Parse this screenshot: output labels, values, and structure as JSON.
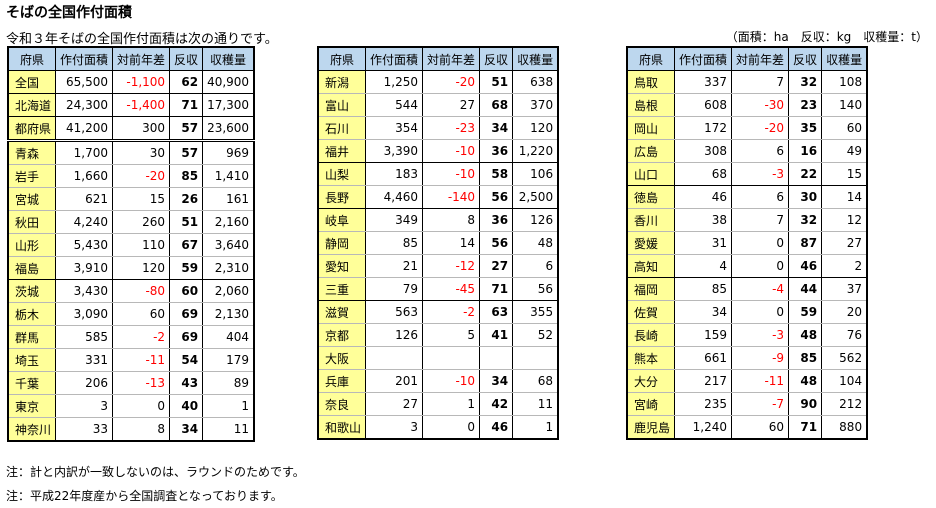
{
  "title": "そばの全国作付面積",
  "subtitle": "令和３年そばの全国作付面積は次の通りです。",
  "units": "（面積：ha　反収：kg　収穫量：t）",
  "headers": [
    "府県",
    "作付面積",
    "対前年差",
    "反収",
    "収穫量"
  ],
  "tables": [
    {
      "rows": [
        {
          "pref": "全国",
          "area": "65,500",
          "diff": "-1,100",
          "yield": "62",
          "harvest": "40,900"
        },
        {
          "pref": "北海道",
          "area": "24,300",
          "diff": "-1,400",
          "yield": "71",
          "harvest": "17,300"
        },
        {
          "pref": "都府県",
          "area": "41,200",
          "diff": "300",
          "yield": "57",
          "harvest": "23,600"
        },
        {
          "pref": "青森",
          "area": "1,700",
          "diff": "30",
          "yield": "57",
          "harvest": "969"
        },
        {
          "pref": "岩手",
          "area": "1,660",
          "diff": "-20",
          "yield": "85",
          "harvest": "1,410"
        },
        {
          "pref": "宮城",
          "area": "621",
          "diff": "15",
          "yield": "26",
          "harvest": "161"
        },
        {
          "pref": "秋田",
          "area": "4,240",
          "diff": "260",
          "yield": "51",
          "harvest": "2,160"
        },
        {
          "pref": "山形",
          "area": "5,430",
          "diff": "110",
          "yield": "67",
          "harvest": "3,640"
        },
        {
          "pref": "福島",
          "area": "3,910",
          "diff": "120",
          "yield": "59",
          "harvest": "2,310"
        },
        {
          "pref": "茨城",
          "area": "3,430",
          "diff": "-80",
          "yield": "60",
          "harvest": "2,060"
        },
        {
          "pref": "栃木",
          "area": "3,090",
          "diff": "60",
          "yield": "69",
          "harvest": "2,130"
        },
        {
          "pref": "群馬",
          "area": "585",
          "diff": "-2",
          "yield": "69",
          "harvest": "404"
        },
        {
          "pref": "埼玉",
          "area": "331",
          "diff": "-11",
          "yield": "54",
          "harvest": "179"
        },
        {
          "pref": "千葉",
          "area": "206",
          "diff": "-13",
          "yield": "43",
          "harvest": "89"
        },
        {
          "pref": "東京",
          "area": "3",
          "diff": "0",
          "yield": "40",
          "harvest": "1"
        },
        {
          "pref": "神奈川",
          "area": "33",
          "diff": "8",
          "yield": "34",
          "harvest": "11"
        }
      ]
    },
    {
      "rows": [
        {
          "pref": "新潟",
          "area": "1,250",
          "diff": "-20",
          "yield": "51",
          "harvest": "638"
        },
        {
          "pref": "富山",
          "area": "544",
          "diff": "27",
          "yield": "68",
          "harvest": "370"
        },
        {
          "pref": "石川",
          "area": "354",
          "diff": "-23",
          "yield": "34",
          "harvest": "120"
        },
        {
          "pref": "福井",
          "area": "3,390",
          "diff": "-10",
          "yield": "36",
          "harvest": "1,220"
        },
        {
          "pref": "山梨",
          "area": "183",
          "diff": "-10",
          "yield": "58",
          "harvest": "106"
        },
        {
          "pref": "長野",
          "area": "4,460",
          "diff": "-140",
          "yield": "56",
          "harvest": "2,500"
        },
        {
          "pref": "岐阜",
          "area": "349",
          "diff": "8",
          "yield": "36",
          "harvest": "126"
        },
        {
          "pref": "静岡",
          "area": "85",
          "diff": "14",
          "yield": "56",
          "harvest": "48"
        },
        {
          "pref": "愛知",
          "area": "21",
          "diff": "-12",
          "yield": "27",
          "harvest": "6"
        },
        {
          "pref": "三重",
          "area": "79",
          "diff": "-45",
          "yield": "71",
          "harvest": "56"
        },
        {
          "pref": "滋賀",
          "area": "563",
          "diff": "-2",
          "yield": "63",
          "harvest": "355"
        },
        {
          "pref": "京都",
          "area": "126",
          "diff": "5",
          "yield": "41",
          "harvest": "52"
        },
        {
          "pref": "大阪",
          "area": "",
          "diff": "",
          "yield": "",
          "harvest": ""
        },
        {
          "pref": "兵庫",
          "area": "201",
          "diff": "-10",
          "yield": "34",
          "harvest": "68"
        },
        {
          "pref": "奈良",
          "area": "27",
          "diff": "1",
          "yield": "42",
          "harvest": "11"
        },
        {
          "pref": "和歌山",
          "area": "3",
          "diff": "0",
          "yield": "46",
          "harvest": "1"
        }
      ]
    },
    {
      "rows": [
        {
          "pref": "鳥取",
          "area": "337",
          "diff": "7",
          "yield": "32",
          "harvest": "108"
        },
        {
          "pref": "島根",
          "area": "608",
          "diff": "-30",
          "yield": "23",
          "harvest": "140"
        },
        {
          "pref": "岡山",
          "area": "172",
          "diff": "-20",
          "yield": "35",
          "harvest": "60"
        },
        {
          "pref": "広島",
          "area": "308",
          "diff": "6",
          "yield": "16",
          "harvest": "49"
        },
        {
          "pref": "山口",
          "area": "68",
          "diff": "-3",
          "yield": "22",
          "harvest": "15"
        },
        {
          "pref": "徳島",
          "area": "46",
          "diff": "6",
          "yield": "30",
          "harvest": "14"
        },
        {
          "pref": "香川",
          "area": "38",
          "diff": "7",
          "yield": "32",
          "harvest": "12"
        },
        {
          "pref": "愛媛",
          "area": "31",
          "diff": "0",
          "yield": "87",
          "harvest": "27"
        },
        {
          "pref": "高知",
          "area": "4",
          "diff": "0",
          "yield": "46",
          "harvest": "2"
        },
        {
          "pref": "福岡",
          "area": "85",
          "diff": "-4",
          "yield": "44",
          "harvest": "37"
        },
        {
          "pref": "佐賀",
          "area": "34",
          "diff": "0",
          "yield": "59",
          "harvest": "20"
        },
        {
          "pref": "長崎",
          "area": "159",
          "diff": "-3",
          "yield": "48",
          "harvest": "76"
        },
        {
          "pref": "熊本",
          "area": "661",
          "diff": "-9",
          "yield": "85",
          "harvest": "562"
        },
        {
          "pref": "大分",
          "area": "217",
          "diff": "-11",
          "yield": "48",
          "harvest": "104"
        },
        {
          "pref": "宮崎",
          "area": "235",
          "diff": "-7",
          "yield": "90",
          "harvest": "212"
        },
        {
          "pref": "鹿児島",
          "area": "1,240",
          "diff": "60",
          "yield": "71",
          "harvest": "880"
        }
      ]
    }
  ],
  "notes": [
    "注：計と内訳が一致しないのは、ラウンドのためです。",
    "注：平成22年度産から全国調査となっております。"
  ]
}
